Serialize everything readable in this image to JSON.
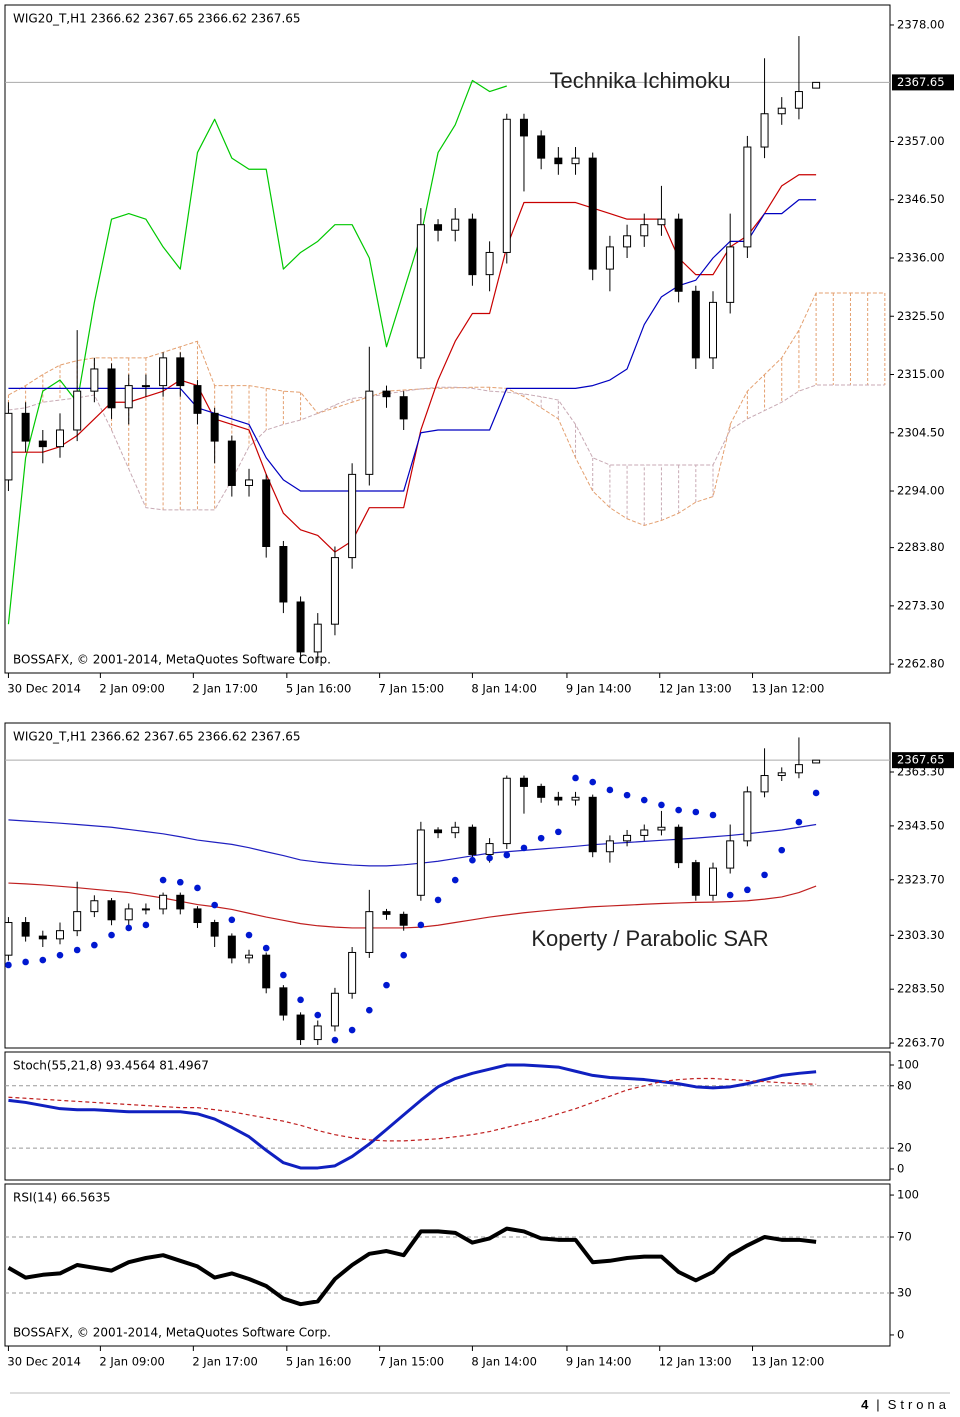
{
  "chart_data": [
    {
      "type": "candlestick",
      "title": "WIG20_T,H1  2366.62 2367.65 2366.62 2367.65",
      "annotation": "Technika Ichimoku",
      "copyright": "BOSSAFX, © 2001-2014, MetaQuotes Software Corp.",
      "xlim": [
        -0.2,
        51.3
      ],
      "ylim": [
        2261.2,
        2381.6
      ],
      "yticks": [
        {
          "value": 2378,
          "label": "2378.00"
        },
        {
          "value": 2357,
          "label": "2357.00"
        },
        {
          "value": 2346.5,
          "label": "2346.50"
        },
        {
          "value": 2336,
          "label": "2336.00"
        },
        {
          "value": 2325.5,
          "label": "2325.50"
        },
        {
          "value": 2315,
          "label": "2315.00"
        },
        {
          "value": 2304.5,
          "label": "2304.50"
        },
        {
          "value": 2294,
          "label": "2294.00"
        },
        {
          "value": 2283.8,
          "label": "2283.80"
        },
        {
          "value": 2273.3,
          "label": "2273.30"
        },
        {
          "value": 2262.8,
          "label": "2262.80"
        }
      ],
      "last_price": {
        "value": 2367.65,
        "label": "2367.65"
      },
      "xticks": [
        {
          "value": 0,
          "label": "30 Dec 2014"
        },
        {
          "value": 5.35,
          "label": "2 Jan 09:00"
        },
        {
          "value": 10.76,
          "label": "2 Jan 17:00"
        },
        {
          "value": 16.2,
          "label": "5 Jan 16:00"
        },
        {
          "value": 21.6,
          "label": "7 Jan 15:00"
        },
        {
          "value": 27,
          "label": "8 Jan 14:00"
        },
        {
          "value": 32.5,
          "label": "9 Jan 14:00"
        },
        {
          "value": 37.9,
          "label": "12 Jan 13:00"
        },
        {
          "value": 43.3,
          "label": "13 Jan 12:00"
        }
      ],
      "open": [
        2296,
        2308,
        2303,
        2302,
        2305,
        2312,
        2316,
        2309,
        2313,
        2313,
        2318,
        2313,
        2308,
        2303,
        2295,
        2296,
        2284,
        2274,
        2265,
        2270,
        2282,
        2297,
        2312,
        2311,
        2318,
        2342,
        2341,
        2343,
        2333,
        2337,
        2361,
        2358,
        2354,
        2353,
        2354,
        2334,
        2338,
        2340,
        2342,
        2343,
        2330,
        2318,
        2328,
        2338,
        2356,
        2362,
        2363,
        2366.62
      ],
      "high": [
        2310,
        2310,
        2305,
        2308,
        2323,
        2318,
        2317,
        2315,
        2315,
        2319,
        2319,
        2314,
        2309,
        2304,
        2298,
        2297,
        2285,
        2275,
        2272,
        2284,
        2299,
        2320,
        2313,
        2312,
        2345,
        2343,
        2345,
        2344,
        2339,
        2362,
        2362,
        2359,
        2356,
        2356,
        2355,
        2340,
        2342,
        2344,
        2349,
        2344,
        2331,
        2330,
        2344,
        2358,
        2372,
        2365,
        2376,
        2367.65
      ],
      "low": [
        2294,
        2301,
        2299,
        2300,
        2303,
        2310,
        2307,
        2306,
        2311,
        2311,
        2311,
        2306,
        2299,
        2293,
        2293,
        2282,
        2272,
        2263,
        2263,
        2268,
        2280,
        2295,
        2309,
        2305,
        2316,
        2339,
        2339,
        2331,
        2330,
        2335,
        2348,
        2352,
        2351,
        2351,
        2332,
        2330,
        2336,
        2338,
        2340,
        2328,
        2316,
        2316,
        2326,
        2336,
        2354,
        2360,
        2361,
        2366.62
      ],
      "close": [
        2308,
        2303,
        2302,
        2305,
        2312,
        2316,
        2309,
        2313,
        2313,
        2318,
        2313,
        2308,
        2303,
        2295,
        2296,
        2284,
        2274,
        2265,
        2270,
        2282,
        2297,
        2312,
        2311,
        2307,
        2342,
        2341,
        2343,
        2333,
        2337,
        2361,
        2358,
        2354,
        2353,
        2354,
        2334,
        2338,
        2340,
        2342,
        2343,
        2330,
        2318,
        2328,
        2338,
        2356,
        2362,
        2363,
        2366,
        2367.65
      ],
      "cloud": {
        "span_a": {
          "color": "#e4a070",
          "values": [
            2311.3,
            2313,
            2315,
            2316.7,
            2317.5,
            2318,
            2318,
            2318,
            2318,
            2319,
            2320,
            2321,
            2313,
            2313,
            2313,
            2312.5,
            2312,
            2311.8,
            2308,
            2309,
            2310,
            2311,
            2312,
            2312.2,
            2312.4,
            2312.5,
            2312.6,
            2312.7,
            2312.7,
            2312.5,
            2311,
            2309,
            2307,
            2300,
            2294,
            2291,
            2289,
            2287.8,
            2288.7,
            2290,
            2292,
            2293,
            2306,
            2312,
            2315,
            2318,
            2323,
            2329.7,
            2329.7,
            2329.7,
            2329.7,
            2329.7
          ]
        },
        "span_b": {
          "color": "#c8aab4",
          "values": [
            2308.6,
            2309,
            2310,
            2310.4,
            2310.8,
            2311.3,
            2305,
            2298,
            2291,
            2290.6,
            2290.6,
            2290.6,
            2290.6,
            2296,
            2302,
            2305,
            2306,
            2306.8,
            2308,
            2309.5,
            2310.7,
            2311,
            2311.5,
            2312,
            2312.4,
            2312.7,
            2312.7,
            2312.5,
            2312,
            2311.8,
            2311.5,
            2311,
            2310.4,
            2306,
            2300,
            2298.7,
            2298.7,
            2298.7,
            2298.7,
            2298.7,
            2298.7,
            2298.7,
            2305,
            2307,
            2308.5,
            2310,
            2312,
            2313.1,
            2313.1,
            2313.1,
            2313.1,
            2313.1
          ]
        }
      },
      "lines": [
        {
          "color": "#00c800",
          "width": 1.2,
          "values": [
            2270,
            2300,
            2312,
            2314,
            2310,
            2328,
            2343,
            2344,
            2343,
            2338,
            2334,
            2355,
            2361,
            2354,
            2352,
            2352,
            2334,
            2337,
            2339,
            2342,
            2342,
            2336,
            2320,
            2330,
            2340,
            2355,
            2360,
            2368,
            2366,
            2367,
            null,
            null,
            null,
            null,
            null,
            null,
            null,
            null,
            null,
            null,
            null,
            null,
            null,
            null,
            null,
            null,
            null,
            null
          ]
        },
        {
          "color": "#c80000",
          "width": 1.2,
          "values": [
            2301,
            2301,
            2301,
            2302,
            2304,
            2307,
            2310,
            2310,
            2311,
            2312,
            2314,
            2313,
            2307,
            2306,
            2305,
            2297,
            2290,
            2287,
            2286,
            2283,
            2285,
            2291,
            2291,
            2291,
            2305,
            2314,
            2321,
            2326,
            2326,
            2338,
            2346,
            2346,
            2346,
            2346,
            2345,
            2344,
            2343,
            2343,
            2343,
            2336,
            2333,
            2333,
            2338,
            2340,
            2344,
            2349,
            2351,
            2351
          ]
        },
        {
          "color": "#0000c0",
          "width": 1.2,
          "values": [
            2312.5,
            2312.5,
            2312.5,
            2312.5,
            2312.5,
            2312.5,
            2312.5,
            2312.5,
            2312.5,
            2312.5,
            2312.5,
            2309,
            2308,
            2307,
            2306,
            2300,
            2296,
            2294,
            2294,
            2294,
            2294,
            2294,
            2294,
            2294,
            2304.5,
            2305,
            2305,
            2305,
            2305,
            2312.5,
            2312.5,
            2312.5,
            2312.5,
            2312.5,
            2313,
            2314,
            2316,
            2324,
            2329,
            2331,
            2332,
            2336,
            2339,
            2339,
            2344,
            2344,
            2346.5,
            2346.5
          ]
        }
      ]
    },
    {
      "type": "candlestick",
      "title": "WIG20_T,H1  2366.62 2367.65 2366.62 2367.65",
      "annotation": "Koperty / Parabolic SAR",
      "xlim": [
        -0.2,
        51.3
      ],
      "ylim": [
        2261.9,
        2381.3
      ],
      "yticks": [
        {
          "value": 2363.3,
          "label": "2363.30"
        },
        {
          "value": 2343.5,
          "label": "2343.50"
        },
        {
          "value": 2323.7,
          "label": "2323.70"
        },
        {
          "value": 2303.3,
          "label": "2303.30"
        },
        {
          "value": 2283.5,
          "label": "2283.50"
        },
        {
          "value": 2263.7,
          "label": "2263.70"
        }
      ],
      "last_price": {
        "value": 2367.65,
        "label": "2367.65"
      },
      "lines": [
        {
          "color": "#2020c0",
          "width": 1.2,
          "values": [
            2345.7,
            2345.3,
            2344.9,
            2344.5,
            2344,
            2343.5,
            2343,
            2342.2,
            2341.4,
            2340.6,
            2339.5,
            2338.3,
            2337.5,
            2336.7,
            2335.5,
            2334,
            2332.6,
            2331,
            2330.2,
            2329.6,
            2329.1,
            2328.8,
            2328.8,
            2329.2,
            2329.8,
            2330.5,
            2331.5,
            2332.5,
            2333.5,
            2334,
            2334.5,
            2335,
            2335.5,
            2336,
            2336.6,
            2337,
            2337.4,
            2337.8,
            2338.2,
            2338.6,
            2339,
            2339.5,
            2340,
            2340.6,
            2341.3,
            2342,
            2343,
            2344
          ]
        },
        {
          "color": "#c02020",
          "width": 1.2,
          "values": [
            2322.5,
            2322.2,
            2321.8,
            2321.3,
            2320.8,
            2320.2,
            2319.6,
            2319,
            2318,
            2317,
            2315.8,
            2314.6,
            2313.8,
            2312.8,
            2311.4,
            2310,
            2308.8,
            2307.6,
            2306.8,
            2306.3,
            2306,
            2306,
            2306,
            2306,
            2306.3,
            2307,
            2308,
            2309,
            2310,
            2310.8,
            2311.6,
            2312.2,
            2312.8,
            2313.3,
            2313.8,
            2314.1,
            2314.4,
            2314.7,
            2315,
            2315.2,
            2315.4,
            2315.5,
            2315.7,
            2316,
            2316.6,
            2317.4,
            2319,
            2321.4
          ]
        }
      ],
      "dots": {
        "color": "#0018d0",
        "values": [
          2292.4,
          2293.5,
          2294.2,
          2296,
          2297.9,
          2299.7,
          2303.4,
          2306,
          2307.1,
          2323.6,
          2322.8,
          2320.7,
          2314.4,
          2309,
          2303.4,
          2298.6,
          2288.7,
          2279.6,
          2274,
          2264.8,
          2268.5,
          2275.8,
          2285,
          2296,
          2307.1,
          2316.3,
          2323.6,
          2330.9,
          2331.7,
          2332.8,
          2335.4,
          2339,
          2341.3,
          2361.1,
          2359.6,
          2356.7,
          2354.8,
          2353,
          2351.2,
          2349.3,
          2348.6,
          2347.5,
          2318.1,
          2320,
          2325.5,
          2334.6,
          2344.9,
          2355.6
        ]
      }
    },
    {
      "type": "line",
      "title": "Stoch(55,21,8) 93.4564 81.4967",
      "xlim": [
        -0.2,
        51.3
      ],
      "ylim": [
        -10.6,
        112.5
      ],
      "yticks": [
        100,
        80,
        20,
        0
      ],
      "levels": [
        80,
        20
      ],
      "lines": [
        {
          "color": "#1020c0",
          "width": 3,
          "values": [
            66,
            64,
            61,
            58,
            57,
            57,
            56,
            55,
            55,
            55,
            55,
            53,
            48,
            40,
            31,
            18,
            6,
            1,
            1,
            3,
            12,
            24,
            38,
            52,
            66,
            79,
            87,
            92,
            96,
            100,
            100,
            99,
            98,
            94,
            90,
            88,
            87,
            86,
            84,
            82,
            79,
            78,
            79,
            82,
            86,
            90,
            92,
            93.4564
          ]
        },
        {
          "color": "#c02020",
          "width": 1.2,
          "dashed": true,
          "values": [
            69,
            68,
            67,
            66,
            65,
            64,
            63,
            62,
            61,
            60,
            59,
            59,
            57,
            55,
            52,
            49,
            46,
            42,
            37,
            33,
            30,
            28,
            27,
            27,
            28,
            29,
            31,
            33,
            36,
            40,
            44,
            48,
            53,
            58,
            64,
            70,
            76,
            80,
            84,
            86,
            87,
            87,
            86,
            85,
            84,
            83,
            82,
            81.4967
          ]
        }
      ]
    },
    {
      "type": "line",
      "title": "RSI(14) 66.5635",
      "copyright": "BOSSAFX, © 2001-2014, MetaQuotes Software Corp.",
      "xlim": [
        -0.2,
        51.3
      ],
      "ylim": [
        -7.9,
        107.9
      ],
      "yticks": [
        100,
        70,
        30,
        0
      ],
      "levels": [
        70,
        30
      ],
      "xticks": [
        {
          "value": 0,
          "label": "30 Dec 2014"
        },
        {
          "value": 5.35,
          "label": "2 Jan 09:00"
        },
        {
          "value": 10.76,
          "label": "2 Jan 17:00"
        },
        {
          "value": 16.2,
          "label": "5 Jan 16:00"
        },
        {
          "value": 21.6,
          "label": "7 Jan 15:00"
        },
        {
          "value": 27,
          "label": "8 Jan 14:00"
        },
        {
          "value": 32.5,
          "label": "9 Jan 14:00"
        },
        {
          "value": 37.9,
          "label": "12 Jan 13:00"
        },
        {
          "value": 43.3,
          "label": "13 Jan 12:00"
        }
      ],
      "lines": [
        {
          "color": "#000000",
          "width": 4,
          "values": [
            48,
            41,
            43,
            44,
            50,
            48,
            46,
            52,
            55,
            57,
            53,
            49,
            41,
            44,
            40,
            35,
            26,
            22,
            24,
            40,
            50,
            58,
            60,
            57,
            74,
            74,
            73,
            66,
            69,
            76,
            74,
            69,
            68,
            68,
            52,
            53,
            55,
            56,
            56,
            45,
            39,
            45,
            57,
            64,
            70,
            68,
            68,
            66.5635
          ]
        }
      ]
    }
  ],
  "footer": {
    "page": "4",
    "separator": "|",
    "word": "Strona"
  }
}
